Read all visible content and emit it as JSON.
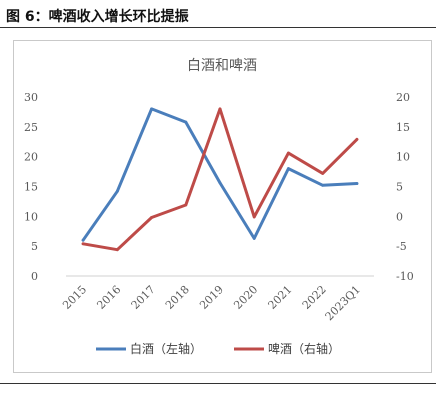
{
  "caption": "图 6：啤酒收入增长环比提振",
  "chart_data": {
    "type": "line",
    "title": "白酒和啤酒",
    "categories": [
      "2015",
      "2016",
      "2017",
      "2018",
      "2019",
      "2020",
      "2021",
      "2022",
      "2023Q1"
    ],
    "series": [
      {
        "name": "白酒（左轴）",
        "axis": "left",
        "color": "#4a7ebb",
        "values": [
          6.0,
          14.2,
          28.0,
          25.8,
          15.6,
          6.3,
          18.0,
          15.2,
          15.5
        ]
      },
      {
        "name": "啤酒（右轴）",
        "axis": "right",
        "color": "#be4b48",
        "values": [
          -4.6,
          -5.6,
          -0.2,
          1.9,
          18.0,
          -0.1,
          10.6,
          7.2,
          12.9
        ]
      }
    ],
    "y_left": {
      "lim": [
        0,
        30
      ],
      "ticks": [
        "0",
        "5",
        "10",
        "15",
        "20",
        "25",
        "30"
      ]
    },
    "y_right": {
      "lim": [
        -10,
        20
      ],
      "ticks": [
        "-10",
        "-5",
        "0",
        "5",
        "10",
        "15",
        "20"
      ]
    },
    "grid": false,
    "legend_position": "bottom"
  }
}
